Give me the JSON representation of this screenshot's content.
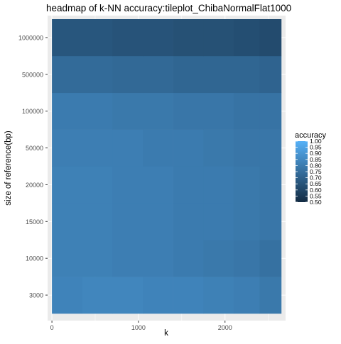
{
  "chart_data": {
    "type": "heatmap",
    "title": "headmap of k-NN accuracy:tileplot_ChibaNormalFlat1000",
    "xlabel": "k",
    "ylabel": "size of reference(bp)",
    "x_ticks": [
      0,
      1000,
      2000
    ],
    "xlim": [
      -50,
      2700
    ],
    "x_bins": [
      [
        0,
        350
      ],
      [
        350,
        700
      ],
      [
        700,
        1050
      ],
      [
        1050,
        1400
      ],
      [
        1400,
        1750
      ],
      [
        1750,
        2100
      ],
      [
        2100,
        2400
      ],
      [
        2400,
        2650
      ]
    ],
    "y_categories": [
      "3000",
      "10000",
      "15000",
      "20000",
      "50000",
      "100000",
      "500000",
      "1000000"
    ],
    "values": [
      [
        0.83,
        0.84,
        0.84,
        0.83,
        0.83,
        0.82,
        0.81,
        0.79
      ],
      [
        0.82,
        0.82,
        0.81,
        0.81,
        0.8,
        0.79,
        0.78,
        0.76
      ],
      [
        0.82,
        0.82,
        0.81,
        0.81,
        0.8,
        0.8,
        0.79,
        0.78
      ],
      [
        0.82,
        0.82,
        0.81,
        0.81,
        0.8,
        0.8,
        0.79,
        0.78
      ],
      [
        0.81,
        0.81,
        0.81,
        0.8,
        0.8,
        0.79,
        0.78,
        0.78
      ],
      [
        0.8,
        0.8,
        0.79,
        0.79,
        0.78,
        0.78,
        0.77,
        0.77
      ],
      [
        0.74,
        0.74,
        0.73,
        0.73,
        0.72,
        0.72,
        0.72,
        0.71
      ],
      [
        0.66,
        0.66,
        0.65,
        0.65,
        0.64,
        0.64,
        0.63,
        0.62
      ]
    ],
    "legend": {
      "title": "accuracy",
      "placement": "right",
      "range": [
        0.5,
        1.0
      ],
      "breaks": [
        "1.00",
        "0.95",
        "0.90",
        "0.85",
        "0.80",
        "0.75",
        "0.70",
        "0.65",
        "0.60",
        "0.55",
        "0.50"
      ],
      "low_color": "#132B43",
      "high_color": "#56B1F7"
    },
    "panel_background": "#EBEBEB",
    "grid": true
  }
}
